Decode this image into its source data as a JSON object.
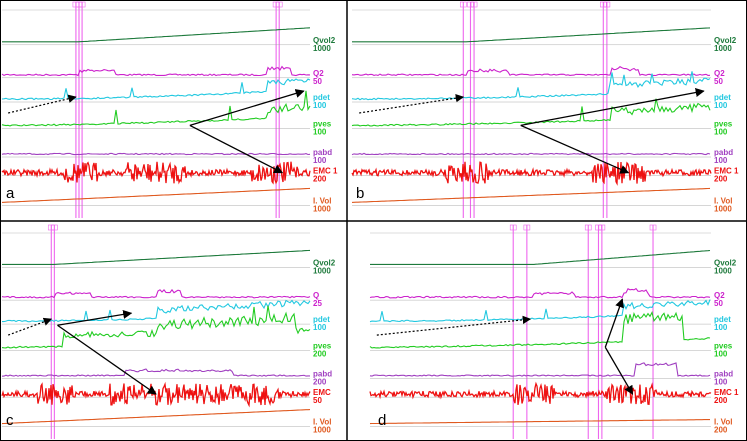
{
  "colors": {
    "Qvol2": "#1e7a3c",
    "Q2": "#cc22cc",
    "Q": "#cc22cc",
    "pdet": "#22c8e0",
    "pves": "#22cc22",
    "pabd": "#a040c0",
    "EMC": "#ee1111",
    "EMC 1": "#ee1111",
    "I. Vol": "#e05a20",
    "marker": "#ee66ee",
    "gridline": "#9a9a9a",
    "frame": "#000000"
  },
  "chart_data": [
    {
      "type": "line",
      "panel": "a",
      "channels": [
        {
          "name": "Qvol2",
          "scale": "1000"
        },
        {
          "name": "Q2",
          "scale": "50"
        },
        {
          "name": "pdet",
          "scale": "100"
        },
        {
          "name": "pves",
          "scale": "100"
        },
        {
          "name": "pabd",
          "scale": "100"
        },
        {
          "name": "EMC 1",
          "scale": "200"
        },
        {
          "name": "I. Vol",
          "scale": "1000"
        }
      ]
    },
    {
      "type": "line",
      "panel": "b",
      "channels": [
        {
          "name": "Qvol2",
          "scale": "1000"
        },
        {
          "name": "Q2",
          "scale": "50"
        },
        {
          "name": "pdet",
          "scale": "100"
        },
        {
          "name": "pves",
          "scale": "100"
        },
        {
          "name": "pabd",
          "scale": "100"
        },
        {
          "name": "EMC 1",
          "scale": "200"
        },
        {
          "name": "I. Vol",
          "scale": "1000"
        }
      ]
    },
    {
      "type": "line",
      "panel": "c",
      "channels": [
        {
          "name": "Qvol2",
          "scale": "1000"
        },
        {
          "name": "Q",
          "scale": "25"
        },
        {
          "name": "pdet",
          "scale": "100"
        },
        {
          "name": "pves",
          "scale": "200"
        },
        {
          "name": "pabd",
          "scale": "200"
        },
        {
          "name": "EMC",
          "scale": "50"
        },
        {
          "name": "I. Vol",
          "scale": "1000"
        }
      ]
    },
    {
      "type": "line",
      "panel": "d",
      "channels": [
        {
          "name": "Qvol2",
          "scale": "1000"
        },
        {
          "name": "Q2",
          "scale": "50"
        },
        {
          "name": "pdet",
          "scale": "100"
        },
        {
          "name": "pves",
          "scale": "100"
        },
        {
          "name": "pabd",
          "scale": "100"
        },
        {
          "name": "EMC 1",
          "scale": "200"
        },
        {
          "name": "I. Vol",
          "scale": "200"
        }
      ]
    }
  ]
}
